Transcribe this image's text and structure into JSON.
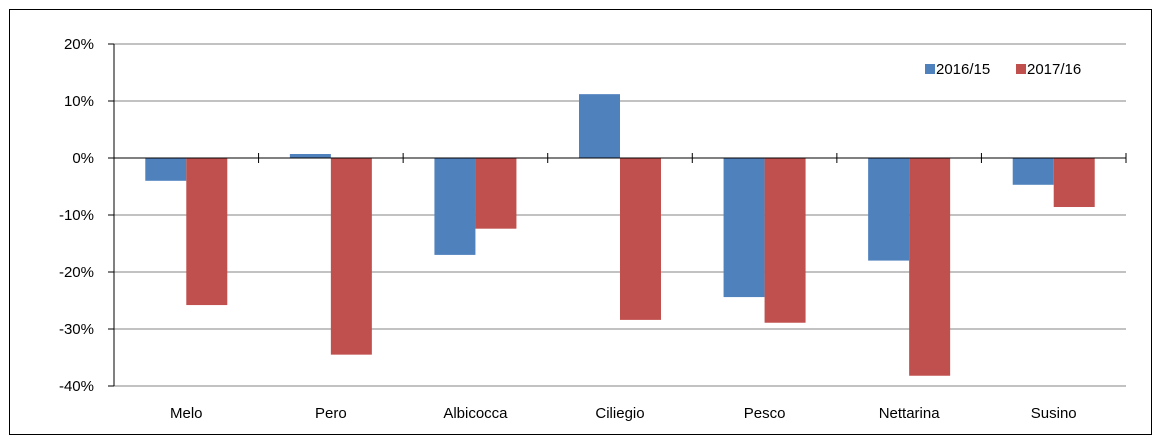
{
  "chart_data": {
    "type": "bar",
    "title": "",
    "xlabel": "",
    "ylabel": "",
    "categories": [
      "Melo",
      "Pero",
      "Albicocca",
      "Ciliegio",
      "Pesco",
      "Nettarina",
      "Susino"
    ],
    "series": [
      {
        "name": "2016/15",
        "color": "#4f81bd",
        "values": [
          -4,
          0.7,
          -17,
          11.2,
          -24.4,
          -18,
          -4.7
        ]
      },
      {
        "name": "2017/16",
        "color": "#c0504d",
        "values": [
          -25.8,
          -34.5,
          -12.4,
          -28.4,
          -28.9,
          -38.2,
          -8.6
        ]
      }
    ],
    "ylim": [
      -40,
      20
    ],
    "yticks": [
      "-40%",
      "-30%",
      "-20%",
      "-10%",
      "0%",
      "10%",
      "20%"
    ],
    "grid": true,
    "legend": "top-right"
  }
}
